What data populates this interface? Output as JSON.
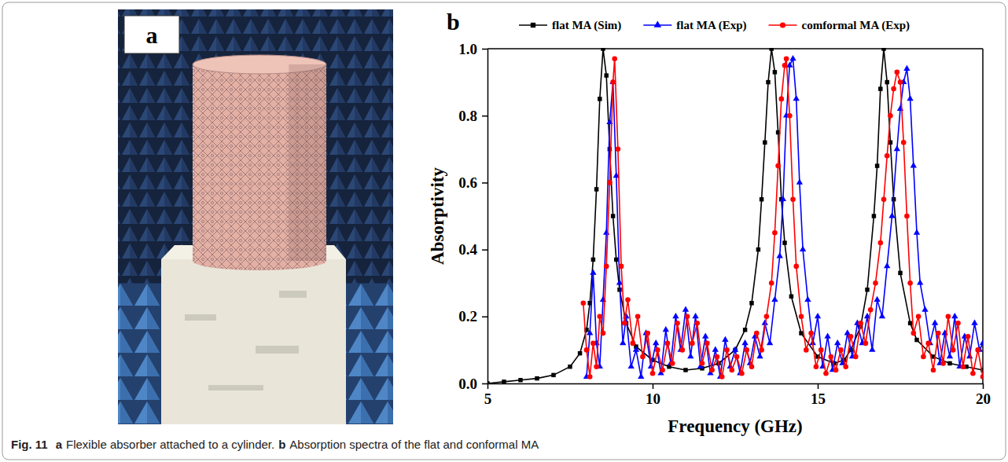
{
  "caption": {
    "label": "Fig. 11",
    "parts": [
      {
        "letter": "a",
        "text": "Flexible absorber attached to a cylinder."
      },
      {
        "letter": "b",
        "text": "Absorption spectra of the flat and conformal MA"
      }
    ]
  },
  "panel_a": {
    "label": "a"
  },
  "chart_data": {
    "type": "line",
    "panel_label": "b",
    "x_label": "Frequency (GHz)",
    "y_label": "Absorptivity",
    "xlim": [
      5,
      20
    ],
    "xticks": [
      5,
      10,
      15,
      20
    ],
    "ylim": [
      0,
      1
    ],
    "yticks": [
      {
        "value": 0,
        "label": "0.0"
      },
      {
        "value": 0.2,
        "label": "0.2"
      },
      {
        "value": 0.4,
        "label": "0.4"
      },
      {
        "value": 0.6,
        "label": "0.6"
      },
      {
        "value": 0.8,
        "label": "0.8"
      },
      {
        "value": 1,
        "label": "1.0"
      }
    ],
    "grid": false,
    "legend": "top",
    "series": [
      {
        "name": "flat MA (Sim)",
        "color": "#000000",
        "marker": "square",
        "line_style": "solid",
        "x": [
          5.0,
          5.5,
          6.0,
          6.5,
          7.0,
          7.5,
          7.8,
          8.0,
          8.1,
          8.2,
          8.3,
          8.4,
          8.5,
          8.6,
          8.7,
          8.8,
          8.9,
          9.0,
          9.2,
          9.5,
          10.0,
          10.5,
          11.0,
          11.5,
          12.0,
          12.5,
          12.8,
          13.0,
          13.2,
          13.3,
          13.4,
          13.5,
          13.6,
          13.7,
          13.8,
          13.9,
          14.0,
          14.2,
          14.5,
          15.0,
          15.5,
          15.8,
          16.0,
          16.3,
          16.5,
          16.7,
          16.8,
          16.9,
          17.0,
          17.1,
          17.2,
          17.3,
          17.5,
          17.8,
          18.0,
          18.5,
          19.0,
          19.5,
          20.0
        ],
        "values": [
          0,
          0.005,
          0.01,
          0.015,
          0.025,
          0.05,
          0.09,
          0.16,
          0.24,
          0.37,
          0.58,
          0.85,
          1.0,
          0.92,
          0.7,
          0.5,
          0.37,
          0.28,
          0.18,
          0.11,
          0.07,
          0.05,
          0.04,
          0.045,
          0.06,
          0.1,
          0.16,
          0.24,
          0.4,
          0.55,
          0.72,
          0.9,
          1.0,
          0.93,
          0.75,
          0.55,
          0.42,
          0.26,
          0.15,
          0.08,
          0.06,
          0.07,
          0.1,
          0.17,
          0.28,
          0.5,
          0.65,
          0.88,
          1.0,
          0.9,
          0.72,
          0.55,
          0.33,
          0.18,
          0.13,
          0.08,
          0.06,
          0.05,
          0.04
        ]
      },
      {
        "name": "flat MA (Exp)",
        "color": "#0000ff",
        "marker": "triangle",
        "line_style": "solid",
        "x": [
          8.0,
          8.1,
          8.2,
          8.3,
          8.4,
          8.5,
          8.6,
          8.7,
          8.8,
          8.9,
          9.0,
          9.1,
          9.2,
          9.35,
          9.5,
          9.65,
          9.8,
          9.95,
          10.1,
          10.25,
          10.4,
          10.55,
          10.7,
          10.85,
          11.0,
          11.15,
          11.3,
          11.45,
          11.6,
          11.75,
          11.9,
          12.05,
          12.2,
          12.35,
          12.5,
          12.65,
          12.8,
          12.95,
          13.1,
          13.25,
          13.4,
          13.55,
          13.7,
          13.85,
          13.95,
          14.05,
          14.15,
          14.25,
          14.35,
          14.45,
          14.55,
          14.7,
          14.85,
          15.0,
          15.15,
          15.3,
          15.45,
          15.6,
          15.75,
          15.9,
          16.05,
          16.2,
          16.35,
          16.5,
          16.65,
          16.8,
          16.95,
          17.1,
          17.25,
          17.4,
          17.5,
          17.6,
          17.7,
          17.8,
          17.9,
          18.0,
          18.1,
          18.25,
          18.4,
          18.55,
          18.7,
          18.85,
          19.0,
          19.15,
          19.3,
          19.45,
          19.6,
          19.75,
          19.9,
          20.0
        ],
        "values": [
          0.02,
          0.15,
          0.33,
          0.12,
          0.05,
          0.25,
          0.45,
          0.78,
          0.9,
          0.62,
          0.3,
          0.12,
          0.2,
          0.05,
          0.1,
          0.02,
          0.15,
          0.05,
          0.12,
          0.03,
          0.16,
          0.06,
          0.2,
          0.1,
          0.22,
          0.08,
          0.2,
          0.05,
          0.14,
          0.03,
          0.1,
          0.02,
          0.13,
          0.05,
          0.1,
          0.03,
          0.12,
          0.06,
          0.14,
          0.08,
          0.18,
          0.12,
          0.25,
          0.38,
          0.55,
          0.8,
          0.95,
          0.97,
          0.85,
          0.6,
          0.4,
          0.25,
          0.12,
          0.2,
          0.05,
          0.14,
          0.04,
          0.12,
          0.06,
          0.15,
          0.08,
          0.18,
          0.12,
          0.2,
          0.1,
          0.25,
          0.2,
          0.35,
          0.5,
          0.7,
          0.82,
          0.9,
          0.94,
          0.85,
          0.65,
          0.45,
          0.3,
          0.22,
          0.12,
          0.18,
          0.06,
          0.15,
          0.08,
          0.2,
          0.05,
          0.14,
          0.08,
          0.18,
          0.1,
          0.12
        ]
      },
      {
        "name": "comformal MA (Exp)",
        "color": "#ff0000",
        "marker": "circle",
        "line_style": "solid",
        "x": [
          7.9,
          8.0,
          8.1,
          8.2,
          8.3,
          8.4,
          8.5,
          8.6,
          8.7,
          8.8,
          8.85,
          8.95,
          9.05,
          9.15,
          9.25,
          9.4,
          9.55,
          9.7,
          9.85,
          10.0,
          10.15,
          10.3,
          10.45,
          10.6,
          10.75,
          10.9,
          11.05,
          11.2,
          11.35,
          11.5,
          11.65,
          11.8,
          11.95,
          12.1,
          12.25,
          12.4,
          12.55,
          12.7,
          12.85,
          13.0,
          13.15,
          13.3,
          13.45,
          13.6,
          13.7,
          13.8,
          13.9,
          14.0,
          14.05,
          14.15,
          14.25,
          14.35,
          14.5,
          14.65,
          14.8,
          14.95,
          15.1,
          15.25,
          15.4,
          15.55,
          15.7,
          15.85,
          16.0,
          16.15,
          16.3,
          16.45,
          16.6,
          16.75,
          16.9,
          17.0,
          17.1,
          17.2,
          17.3,
          17.4,
          17.5,
          17.6,
          17.7,
          17.8,
          17.9,
          18.05,
          18.2,
          18.35,
          18.5,
          18.65,
          18.8,
          18.95,
          19.1,
          19.25,
          19.4,
          19.55,
          19.7,
          19.85,
          20.0
        ],
        "values": [
          0.24,
          0.1,
          0.02,
          0.12,
          0.05,
          0.2,
          0.15,
          0.35,
          0.6,
          0.9,
          0.97,
          0.7,
          0.35,
          0.18,
          0.25,
          0.12,
          0.2,
          0.08,
          0.15,
          0.03,
          0.1,
          0.04,
          0.12,
          0.06,
          0.18,
          0.1,
          0.2,
          0.12,
          0.18,
          0.06,
          0.12,
          0.04,
          0.08,
          0.02,
          0.1,
          0.04,
          0.08,
          0.03,
          0.1,
          0.05,
          0.15,
          0.1,
          0.2,
          0.3,
          0.45,
          0.65,
          0.85,
          0.95,
          0.97,
          0.8,
          0.55,
          0.35,
          0.2,
          0.1,
          0.15,
          0.05,
          0.1,
          0.03,
          0.08,
          0.04,
          0.1,
          0.05,
          0.14,
          0.08,
          0.18,
          0.12,
          0.22,
          0.3,
          0.42,
          0.55,
          0.68,
          0.8,
          0.88,
          0.93,
          0.9,
          0.72,
          0.5,
          0.3,
          0.15,
          0.2,
          0.08,
          0.12,
          0.04,
          0.15,
          0.06,
          0.2,
          0.1,
          0.18,
          0.05,
          0.14,
          0.03,
          0.1,
          0.02
        ]
      }
    ]
  }
}
